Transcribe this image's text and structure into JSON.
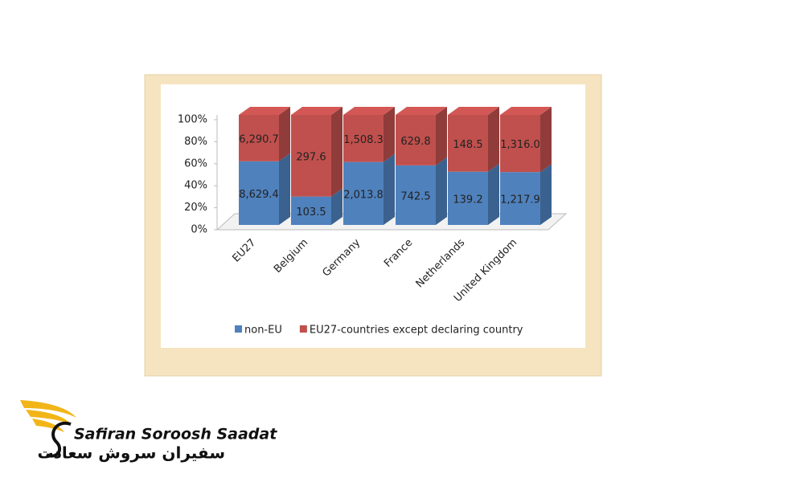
{
  "chart_data": {
    "type": "stacked_bar_100",
    "categories": [
      "EU27",
      "Belgium",
      "Germany",
      "France",
      "Netherlands",
      "United Kingdom"
    ],
    "series": [
      {
        "name": "non-EU",
        "color": "#4f81bd",
        "values": [
          8629.4,
          103.5,
          2013.8,
          742.5,
          139.2,
          1217.9
        ],
        "value_labels": [
          "8,629.4",
          "103.5",
          "2,013.8",
          "742.5",
          "139.2",
          "1,217.9"
        ]
      },
      {
        "name": "EU27-countries except declaring country",
        "color": "#c0504d",
        "values": [
          6290.7,
          297.6,
          1508.3,
          629.8,
          148.5,
          1316.0
        ],
        "value_labels": [
          "6,290.7",
          "297.6",
          "1,508.3",
          "629.8",
          "148.5",
          "1,316.0"
        ]
      }
    ],
    "ylim": [
      0,
      100
    ],
    "yticks": [
      {
        "value": 0,
        "label": "0%"
      },
      {
        "value": 20,
        "label": "20%"
      },
      {
        "value": 40,
        "label": "40%"
      },
      {
        "value": 60,
        "label": "60%"
      },
      {
        "value": 80,
        "label": "80%"
      },
      {
        "value": 100,
        "label": "100%"
      }
    ],
    "legend": "bottom"
  },
  "logo": {
    "name": "Safiran Soroosh Saadat",
    "name_fa": "سفیران سروش سعادت"
  }
}
